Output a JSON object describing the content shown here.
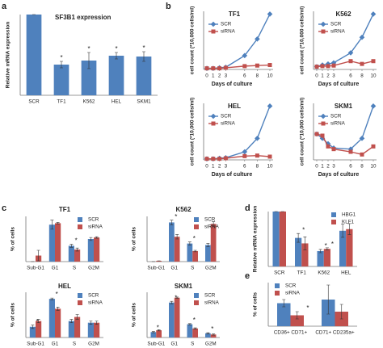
{
  "chart_data": [
    {
      "type": "bar",
      "panel": "a",
      "title": "SF3B1 expression",
      "ylabel": "Relative mRNA expression",
      "categories": [
        "SCR",
        "TF1",
        "K562",
        "HEL",
        "SKM1"
      ],
      "values": [
        100,
        38,
        43,
        49,
        48
      ],
      "errors": [
        0,
        4,
        10,
        4,
        6
      ],
      "annotations": [
        null,
        "*",
        "*",
        "*",
        "*"
      ],
      "color": "#4f81bd",
      "ylim": [
        0,
        100
      ]
    },
    {
      "type": "line",
      "panel": "b",
      "title": "TF1",
      "ylabel": "cell count (*10,000 cells/ml)",
      "xlabel": "Days of culture",
      "x": [
        0,
        1,
        2,
        3,
        6,
        8,
        10
      ],
      "xlim": [
        0,
        10
      ],
      "ylim": [
        0,
        105
      ],
      "legend": "upper left",
      "series": [
        {
          "name": "SCR",
          "color": "#4f81bd",
          "marker": "diamond",
          "values": [
            2,
            2,
            3,
            4,
            25,
            55,
            100
          ]
        },
        {
          "name": "siRNA",
          "color": "#c0504d",
          "marker": "square",
          "values": [
            2,
            2,
            2,
            3,
            6,
            7,
            8
          ]
        }
      ]
    },
    {
      "type": "line",
      "title": "K562",
      "ylabel": "cell count (*10,000 cells/ml)",
      "xlabel": "Days of culture",
      "x": [
        0,
        1,
        2,
        3,
        6,
        8,
        10
      ],
      "xlim": [
        0,
        10
      ],
      "ylim": [
        0,
        105
      ],
      "legend": "upper left",
      "series": [
        {
          "name": "SCR",
          "color": "#4f81bd",
          "marker": "diamond",
          "values": [
            5,
            8,
            10,
            12,
            30,
            58,
            100
          ]
        },
        {
          "name": "siRNA",
          "color": "#c0504d",
          "marker": "square",
          "values": [
            5,
            6,
            6,
            7,
            15,
            10,
            15
          ]
        }
      ]
    },
    {
      "type": "line",
      "title": "HEL",
      "ylabel": "cell count (*10,000 cells/ml)",
      "xlabel": "Days of culture",
      "x": [
        0,
        1,
        2,
        3,
        6,
        8,
        10
      ],
      "xlim": [
        0,
        10
      ],
      "ylim": [
        0,
        105
      ],
      "legend": "upper left",
      "series": [
        {
          "name": "SCR",
          "color": "#4f81bd",
          "marker": "diamond",
          "values": [
            2,
            2,
            3,
            4,
            15,
            40,
            100
          ]
        },
        {
          "name": "siRNA",
          "color": "#c0504d",
          "marker": "square",
          "values": [
            2,
            2,
            2,
            3,
            7,
            8,
            6
          ]
        }
      ]
    },
    {
      "type": "line",
      "title": "SKM1",
      "ylabel": "cell count (*10,000 cells/ml)",
      "xlabel": "Days of culture",
      "x": [
        0,
        1,
        2,
        3,
        6,
        8,
        10
      ],
      "xlim": [
        0,
        10
      ],
      "ylim": [
        0,
        105
      ],
      "legend": "upper left",
      "series": [
        {
          "name": "SCR",
          "color": "#4f81bd",
          "marker": "diamond",
          "values": [
            48,
            40,
            30,
            22,
            20,
            40,
            100
          ]
        },
        {
          "name": "siRNA",
          "color": "#c0504d",
          "marker": "square",
          "values": [
            48,
            45,
            25,
            20,
            15,
            10,
            25
          ]
        }
      ]
    },
    {
      "type": "bar",
      "panel": "c",
      "title": "TF1",
      "ylabel": "% of cells",
      "categories": [
        "Sub-G1",
        "G1",
        "S",
        "G2M"
      ],
      "ylim": [
        0,
        60
      ],
      "legend": "upper right",
      "series": [
        {
          "name": "SCR",
          "color": "#4f81bd",
          "values": [
            0,
            49,
            21,
            30
          ],
          "errors": [
            0,
            6,
            2,
            2
          ],
          "annotations": [
            null,
            null,
            "*",
            null
          ]
        },
        {
          "name": "siRNA",
          "color": "#c0504d",
          "values": [
            8,
            51,
            16,
            32
          ],
          "errors": [
            7,
            1,
            2,
            1
          ],
          "annotations": [
            null,
            null,
            null,
            null
          ]
        }
      ]
    },
    {
      "type": "bar",
      "title": "K562",
      "ylabel": "% of cells",
      "categories": [
        "Sub-G1",
        "G1",
        "S",
        "G2M"
      ],
      "ylim": [
        0,
        60
      ],
      "legend": "upper right",
      "series": [
        {
          "name": "SCR",
          "color": "#4f81bd",
          "values": [
            0,
            52,
            24,
            22
          ],
          "errors": [
            0,
            3,
            2,
            2
          ],
          "annotations": [
            null,
            "*",
            "*",
            "*"
          ]
        },
        {
          "name": "siRNA",
          "color": "#c0504d",
          "values": [
            1,
            33,
            14,
            50
          ],
          "errors": [
            0,
            3,
            1,
            3
          ],
          "annotations": [
            null,
            null,
            null,
            null
          ]
        }
      ]
    },
    {
      "type": "bar",
      "title": "HEL",
      "ylabel": "% of cells",
      "categories": [
        "Sub-G1",
        "G1",
        "S",
        "G2M"
      ],
      "ylim": [
        0,
        55
      ],
      "legend": "upper right",
      "series": [
        {
          "name": "SCR",
          "color": "#4f81bd",
          "values": [
            13,
            47,
            20,
            18
          ],
          "errors": [
            2,
            1,
            2,
            2
          ],
          "annotations": [
            "*",
            "*",
            null,
            null
          ]
        },
        {
          "name": "siRNA",
          "color": "#c0504d",
          "values": [
            20,
            35,
            25,
            18
          ],
          "errors": [
            2,
            2,
            3,
            2
          ],
          "annotations": [
            null,
            null,
            null,
            null
          ]
        }
      ]
    },
    {
      "type": "bar",
      "title": "SKM1",
      "ylabel": "% of cells",
      "categories": [
        "Sub-G1",
        "G1",
        "S",
        "G2M"
      ],
      "ylim": [
        0,
        75
      ],
      "legend": "upper right",
      "series": [
        {
          "name": "SCR",
          "color": "#4f81bd",
          "values": [
            9,
            58,
            22,
            7
          ],
          "errors": [
            1,
            2,
            1,
            1
          ],
          "annotations": [
            "*",
            "*",
            "*",
            "*"
          ]
        },
        {
          "name": "siRNA",
          "color": "#c0504d",
          "values": [
            12,
            66,
            15,
            5
          ],
          "errors": [
            1,
            1,
            1,
            1
          ],
          "annotations": [
            null,
            null,
            null,
            null
          ]
        }
      ]
    },
    {
      "type": "bar",
      "panel": "d",
      "ylabel": "Relative mRNA expression",
      "categories": [
        "SCR",
        "TF1",
        "K562",
        "HEL"
      ],
      "ylim": [
        0,
        100
      ],
      "legend": "upper right",
      "series": [
        {
          "name": "HBG1",
          "color": "#4f81bd",
          "values": [
            100,
            52,
            28,
            65
          ],
          "errors": [
            0,
            8,
            3,
            12
          ],
          "annotations": [
            null,
            "*",
            "*",
            null
          ]
        },
        {
          "name": "KLF1",
          "color": "#c0504d",
          "values": [
            100,
            42,
            32,
            68
          ],
          "errors": [
            0,
            12,
            2,
            10
          ],
          "annotations": [
            null,
            null,
            "*",
            null
          ]
        }
      ]
    },
    {
      "type": "bar",
      "panel": "e",
      "ylabel": "% of cells",
      "categories": [
        "CD36+ CD71+",
        "CD71+ CD235a+"
      ],
      "ylim": [
        0,
        18
      ],
      "legend": "upper left",
      "series": [
        {
          "name": "SCR",
          "color": "#4f81bd",
          "values": [
            9.5,
            11
          ],
          "errors": [
            1.5,
            6
          ],
          "annotations": [
            null,
            null
          ]
        },
        {
          "name": "siRNA",
          "color": "#c0504d",
          "values": [
            4.5,
            6
          ],
          "errors": [
            1.5,
            3
          ],
          "annotations": [
            "*",
            null
          ]
        }
      ]
    }
  ]
}
